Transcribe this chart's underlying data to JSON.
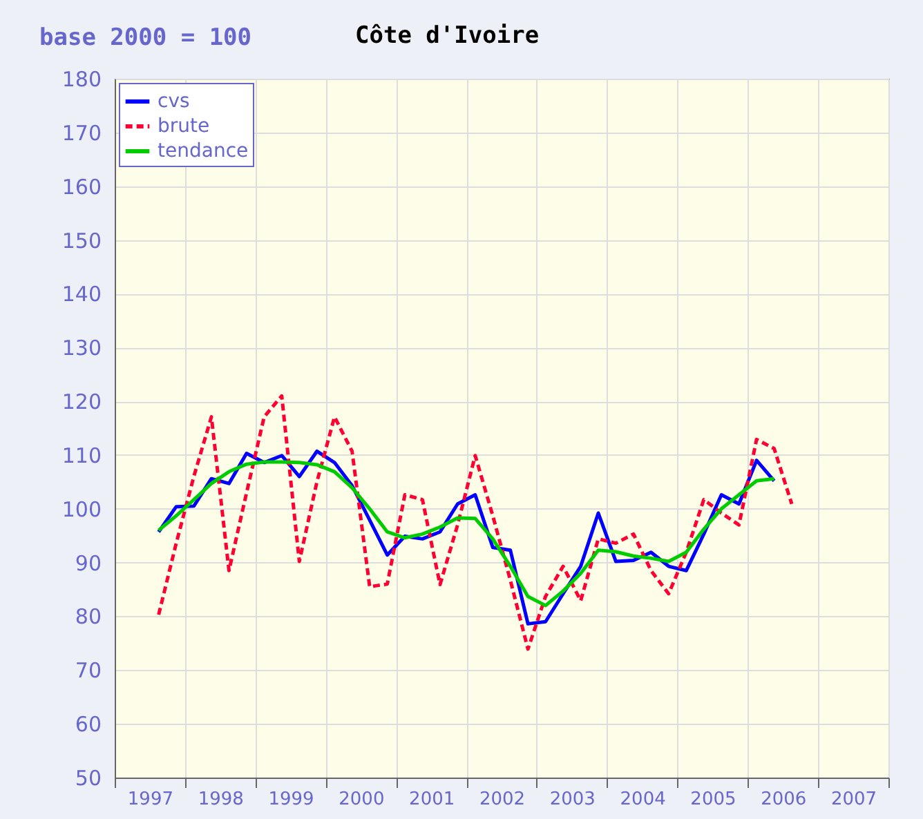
{
  "chart_data": {
    "type": "line",
    "title": "Côte d'Ivoire",
    "ylabel": "base 2000 = 100",
    "x": [
      1997.625,
      1997.875,
      1998.125,
      1998.375,
      1998.625,
      1998.875,
      1999.125,
      1999.375,
      1999.625,
      1999.875,
      2000.125,
      2000.375,
      2000.625,
      2000.875,
      2001.125,
      2001.375,
      2001.625,
      2001.875,
      2002.125,
      2002.375,
      2002.625,
      2002.875,
      2003.125,
      2003.375,
      2003.625,
      2003.875,
      2004.125,
      2004.375,
      2004.625,
      2004.875,
      2005.125,
      2005.375,
      2005.625,
      2005.875,
      2006.125,
      2006.375
    ],
    "series": [
      {
        "name": "cvs",
        "color": "#0000ff",
        "line_style": "solid",
        "values": [
          95.7,
          100.4,
          100.5,
          105.6,
          104.7,
          110.3,
          108.6,
          109.9,
          106,
          110.7,
          108.6,
          104.3,
          97.9,
          91.4,
          94.9,
          94.4,
          95.7,
          100.9,
          102.6,
          92.8,
          92.3,
          78.6,
          79,
          84.2,
          89.3,
          99.2,
          90.2,
          90.4,
          91.9,
          89.3,
          88.5,
          95.3,
          102.6,
          100.9,
          109,
          105.2
        ]
      },
      {
        "name": "brute",
        "color": "#ff0033",
        "line_style": "dashed",
        "x": [
          1997.625,
          1997.875,
          1998.125,
          1998.375,
          1998.625,
          1998.875,
          1999.125,
          1999.375,
          1999.625,
          1999.875,
          2000.125,
          2000.375,
          2000.625,
          2000.875,
          2001.125,
          2001.375,
          2001.625,
          2001.875,
          2002.125,
          2002.375,
          2002.625,
          2002.875,
          2003.125,
          2003.375,
          2003.625,
          2003.875,
          2004.125,
          2004.375,
          2004.625,
          2004.875,
          2005.125,
          2005.375,
          2005.625,
          2005.875,
          2006.125,
          2006.375,
          2006.625
        ],
        "values": [
          80.3,
          93.6,
          106,
          117.1,
          88.5,
          103,
          117.1,
          121,
          90.2,
          105,
          117.1,
          110.7,
          85.5,
          86,
          102.6,
          101.7,
          85.9,
          97,
          109.9,
          98.7,
          86.7,
          73.9,
          83.7,
          89.3,
          82.9,
          94.4,
          93.6,
          95.3,
          88.5,
          84.2,
          91.9,
          101.7,
          99.2,
          97,
          112.9,
          111.2,
          100.9
        ]
      },
      {
        "name": "tendance",
        "color": "#00cc00",
        "line_style": "solid",
        "values": [
          96,
          98.7,
          101.7,
          104.7,
          106.9,
          108.3,
          108.7,
          108.7,
          108.6,
          108.2,
          106.9,
          103.9,
          100,
          95.7,
          94.6,
          95.3,
          96.6,
          98.3,
          98.2,
          94.4,
          89.3,
          83.7,
          82,
          84.7,
          88,
          92.3,
          92,
          91.2,
          90.8,
          90.2,
          91.9,
          96.2,
          100,
          102.6,
          105.2,
          105.6
        ]
      }
    ],
    "xlim": [
      1997,
      2008
    ],
    "xticks": [
      {
        "value": 1997,
        "label": null
      },
      {
        "value": 1998,
        "label": null
      },
      {
        "value": 1999,
        "label": null
      },
      {
        "value": 2000,
        "label": null
      },
      {
        "value": 2001,
        "label": null
      },
      {
        "value": 2002,
        "label": null
      },
      {
        "value": 2003,
        "label": null
      },
      {
        "value": 2004,
        "label": null
      },
      {
        "value": 2005,
        "label": null
      },
      {
        "value": 2006,
        "label": null
      },
      {
        "value": 2007,
        "label": null
      },
      {
        "value": 2008,
        "label": null
      },
      {
        "value": 1997.5,
        "label": "1997"
      },
      {
        "value": 1998.5,
        "label": "1998"
      },
      {
        "value": 1999.5,
        "label": "1999"
      },
      {
        "value": 2000.5,
        "label": "2000"
      },
      {
        "value": 2001.5,
        "label": "2001"
      },
      {
        "value": 2002.5,
        "label": "2002"
      },
      {
        "value": 2003.5,
        "label": "2003"
      },
      {
        "value": 2004.5,
        "label": "2004"
      },
      {
        "value": 2005.5,
        "label": "2005"
      },
      {
        "value": 2006.5,
        "label": "2006"
      },
      {
        "value": 2007.5,
        "label": "2007"
      }
    ],
    "ylim": [
      50,
      180
    ],
    "yticks": [
      50,
      60,
      70,
      80,
      90,
      100,
      110,
      120,
      130,
      140,
      150,
      160,
      170,
      180
    ],
    "grid": true,
    "legend": "top left"
  }
}
